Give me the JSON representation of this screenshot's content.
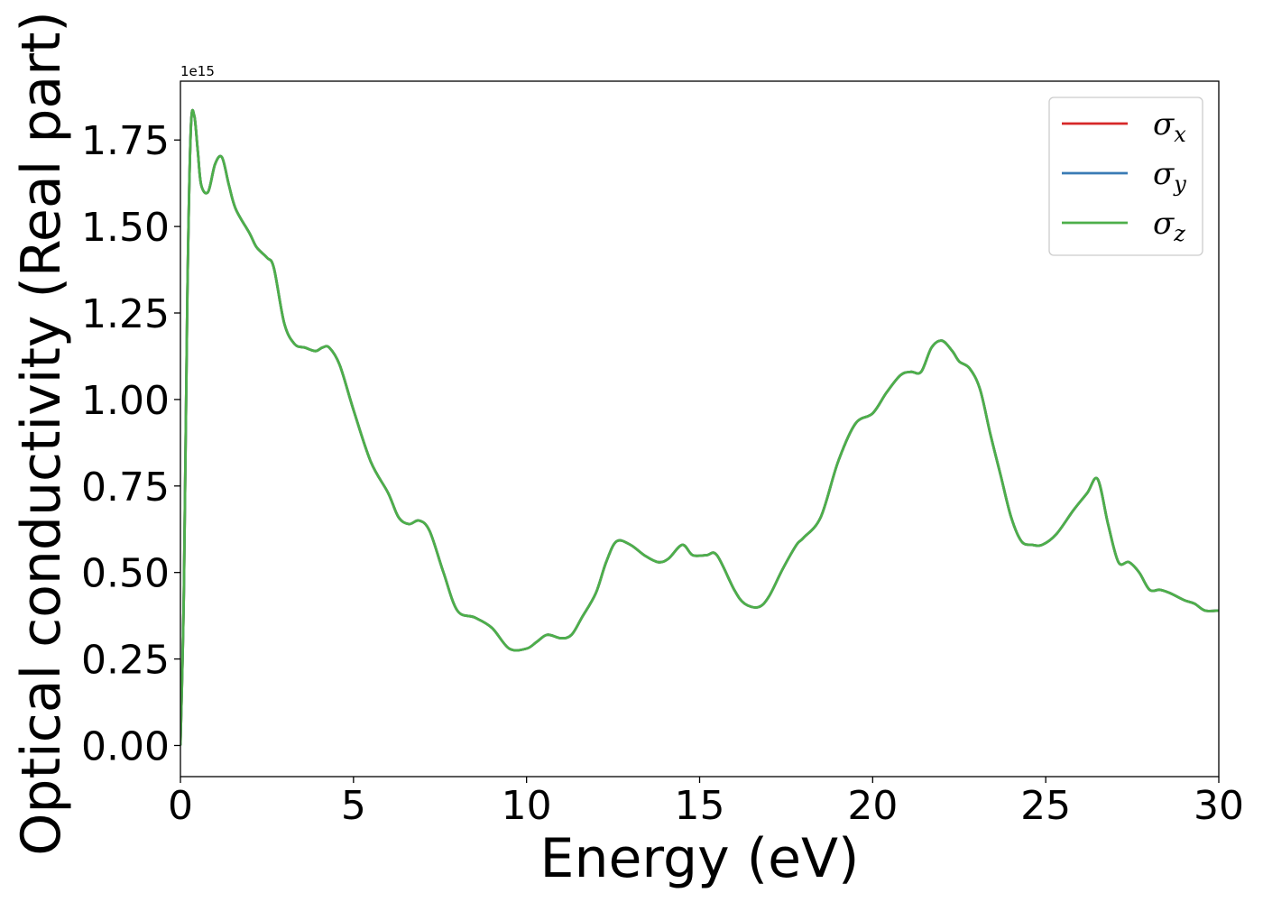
{
  "chart_data": {
    "type": "line",
    "xlabel": "Energy (eV)",
    "ylabel": "Optical conductivity (Real part)",
    "y_offset_label": "1e15",
    "xlim": [
      0,
      30
    ],
    "ylim": [
      -0.09,
      1.92
    ],
    "x_ticks": [
      0,
      5,
      10,
      15,
      20,
      25,
      30
    ],
    "x_tick_labels": [
      "0",
      "5",
      "10",
      "15",
      "20",
      "25",
      "30"
    ],
    "y_ticks": [
      0,
      0.25,
      0.5,
      0.75,
      1.0,
      1.25,
      1.5,
      1.75
    ],
    "y_tick_labels": [
      "0.00",
      "0.25",
      "0.50",
      "0.75",
      "1.00",
      "1.25",
      "1.50",
      "1.75"
    ],
    "grid": false,
    "legend": {
      "placement": "top-right"
    },
    "series": [
      {
        "name": "σx",
        "symbol": "σ",
        "subscript": "x",
        "color": "#d62728"
      },
      {
        "name": "σy",
        "symbol": "σ",
        "subscript": "y",
        "color": "#3a7bb5"
      },
      {
        "name": "σz",
        "symbol": "σ",
        "subscript": "z",
        "color": "#4daf4a"
      }
    ],
    "x": [
      0,
      0.1,
      0.2,
      0.3,
      0.4,
      0.5,
      0.6,
      0.8,
      1.0,
      1.2,
      1.4,
      1.6,
      2.0,
      2.2,
      2.5,
      2.7,
      3.0,
      3.3,
      3.6,
      3.9,
      4.1,
      4.3,
      4.6,
      5.0,
      5.5,
      6.0,
      6.3,
      6.6,
      6.9,
      7.2,
      7.6,
      8.0,
      8.5,
      9.0,
      9.5,
      10.0,
      10.3,
      10.6,
      11.0,
      11.3,
      11.6,
      12.0,
      12.3,
      12.6,
      13.0,
      13.4,
      13.8,
      14.1,
      14.5,
      14.8,
      15.2,
      15.5,
      16.0,
      16.3,
      16.7,
      17.0,
      17.4,
      17.8,
      18.0,
      18.5,
      19.0,
      19.5,
      20.0,
      20.4,
      20.8,
      21.1,
      21.4,
      21.7,
      22.0,
      22.3,
      22.5,
      22.8,
      23.1,
      23.4,
      23.7,
      24.0,
      24.3,
      24.6,
      24.9,
      25.3,
      25.8,
      26.2,
      26.5,
      26.8,
      27.1,
      27.4,
      27.7,
      28.0,
      28.3,
      28.6,
      29.0,
      29.3,
      29.6,
      30.0
    ],
    "values": [
      0.0,
      0.45,
      1.3,
      1.78,
      1.82,
      1.72,
      1.62,
      1.6,
      1.68,
      1.7,
      1.62,
      1.55,
      1.48,
      1.44,
      1.41,
      1.38,
      1.22,
      1.16,
      1.15,
      1.14,
      1.15,
      1.15,
      1.1,
      0.97,
      0.82,
      0.73,
      0.66,
      0.64,
      0.65,
      0.62,
      0.5,
      0.39,
      0.37,
      0.34,
      0.28,
      0.28,
      0.3,
      0.32,
      0.31,
      0.32,
      0.37,
      0.44,
      0.53,
      0.59,
      0.58,
      0.55,
      0.53,
      0.54,
      0.58,
      0.55,
      0.55,
      0.55,
      0.45,
      0.41,
      0.4,
      0.43,
      0.51,
      0.58,
      0.6,
      0.66,
      0.82,
      0.93,
      0.96,
      1.02,
      1.07,
      1.08,
      1.08,
      1.15,
      1.17,
      1.14,
      1.11,
      1.09,
      1.03,
      0.9,
      0.78,
      0.66,
      0.59,
      0.58,
      0.58,
      0.61,
      0.68,
      0.73,
      0.77,
      0.64,
      0.53,
      0.53,
      0.5,
      0.45,
      0.45,
      0.44,
      0.42,
      0.41,
      0.39,
      0.39
    ]
  }
}
